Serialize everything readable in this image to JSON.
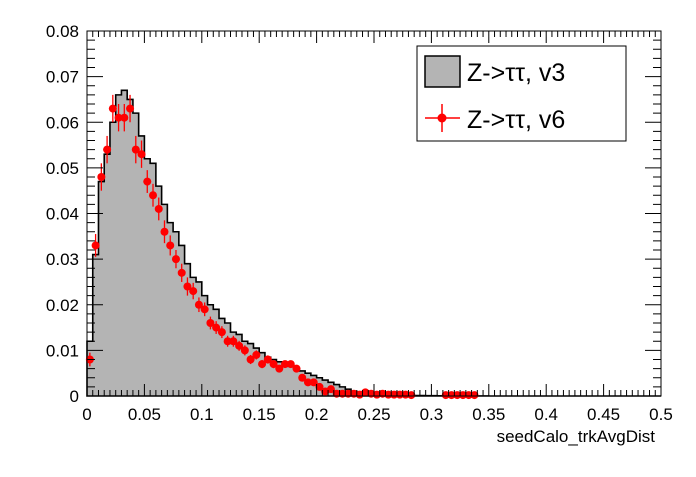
{
  "chart_data": {
    "type": "histogram",
    "title": "",
    "xlabel": "seedCalo_trkAvgDist",
    "ylabel": "",
    "xlim": [
      0,
      0.5
    ],
    "ylim": [
      0,
      0.08
    ],
    "grid": false,
    "legend_position": "top-right",
    "x_ticks": [
      "0",
      "0.05",
      "0.1",
      "0.15",
      "0.2",
      "0.25",
      "0.3",
      "0.35",
      "0.4",
      "0.45",
      "0.5"
    ],
    "y_ticks": [
      "0",
      "0.01",
      "0.02",
      "0.03",
      "0.04",
      "0.05",
      "0.06",
      "0.07",
      "0.08"
    ],
    "bin_width": 0.005,
    "series": [
      {
        "name": "Z->ττ, v3",
        "style": "filled-histogram",
        "fill": "#b4b4b4",
        "line": "#000000",
        "values": [
          0.012,
          0.031,
          0.047,
          0.053,
          0.06,
          0.066,
          0.067,
          0.065,
          0.062,
          0.057,
          0.052,
          0.051,
          0.046,
          0.042,
          0.038,
          0.036,
          0.033,
          0.029,
          0.026,
          0.025,
          0.022,
          0.02,
          0.019,
          0.017,
          0.016,
          0.014,
          0.0135,
          0.012,
          0.0115,
          0.0105,
          0.0095,
          0.0085,
          0.008,
          0.0075,
          0.007,
          0.0065,
          0.006,
          0.0055,
          0.005,
          0.0045,
          0.004,
          0.0035,
          0.003,
          0.0025,
          0.002,
          0.0015,
          0.001,
          0.0008,
          0.0006,
          0.0005,
          0.0004,
          0.0003,
          0.00025,
          0.0002,
          0.0002,
          0.00015,
          0.00012,
          0.0001,
          0.0001,
          8e-05,
          6e-05,
          5e-05,
          4e-05,
          3e-05,
          2e-05,
          2e-05,
          1e-05,
          1e-05,
          1e-05,
          1e-05,
          0,
          0,
          0,
          0,
          0,
          0,
          0,
          0,
          0,
          0,
          0,
          0,
          0,
          0,
          0,
          0,
          0,
          0,
          0,
          0,
          0,
          0,
          0,
          0,
          0,
          0,
          0,
          0,
          0,
          0
        ]
      },
      {
        "name": "Z->ττ, v6",
        "style": "points-with-errors",
        "color": "#ff0000",
        "x": [
          0.0025,
          0.0075,
          0.0125,
          0.0175,
          0.0225,
          0.0275,
          0.0325,
          0.0375,
          0.0425,
          0.0475,
          0.0525,
          0.0575,
          0.0625,
          0.0675,
          0.0725,
          0.0775,
          0.0825,
          0.0875,
          0.0925,
          0.0975,
          0.1025,
          0.1075,
          0.1125,
          0.1175,
          0.1225,
          0.1275,
          0.1325,
          0.1375,
          0.1425,
          0.1475,
          0.1525,
          0.1575,
          0.1625,
          0.1675,
          0.1725,
          0.1775,
          0.1825,
          0.1875,
          0.1925,
          0.1975,
          0.2025,
          0.2075,
          0.2125,
          0.2175,
          0.2225,
          0.2275,
          0.2325,
          0.2375,
          0.2425,
          0.2475,
          0.2525,
          0.2575,
          0.2625,
          0.2675,
          0.2725,
          0.2775,
          0.2825,
          0.3125,
          0.3175,
          0.3225,
          0.3275,
          0.3325,
          0.3375
        ],
        "values": [
          0.008,
          0.033,
          0.048,
          0.054,
          0.063,
          0.061,
          0.061,
          0.063,
          0.054,
          0.053,
          0.047,
          0.044,
          0.041,
          0.036,
          0.033,
          0.03,
          0.027,
          0.024,
          0.023,
          0.02,
          0.019,
          0.016,
          0.015,
          0.014,
          0.012,
          0.012,
          0.011,
          0.01,
          0.008,
          0.009,
          0.007,
          0.008,
          0.007,
          0.006,
          0.007,
          0.007,
          0.006,
          0.004,
          0.003,
          0.003,
          0.002,
          0.001,
          0.0015,
          0.0005,
          0.0005,
          0.0005,
          0.0005,
          0.0003,
          0.0008,
          0.0005,
          0.0003,
          0.0005,
          0.0003,
          0.0003,
          0.0003,
          0.0003,
          0.0002,
          0.0002,
          0.0002,
          0.0002,
          0.0002,
          0.0002,
          0.0002
        ],
        "errors": [
          0.0015,
          0.0025,
          0.003,
          0.003,
          0.003,
          0.003,
          0.003,
          0.003,
          0.003,
          0.003,
          0.0025,
          0.0025,
          0.0025,
          0.0025,
          0.0022,
          0.002,
          0.002,
          0.002,
          0.0018,
          0.0016,
          0.0015,
          0.0014,
          0.0014,
          0.0013,
          0.0012,
          0.0012,
          0.0011,
          0.0011,
          0.001,
          0.001,
          0.0009,
          0.0009,
          0.0009,
          0.0008,
          0.0008,
          0.0008,
          0.0008,
          0.0007,
          0.0006,
          0.0006,
          0.0005,
          0.0004,
          0.0004,
          0.0003,
          0.0003,
          0.0003,
          0.0003,
          0.0002,
          0.0003,
          0.0003,
          0.0002,
          0.0002,
          0.0002,
          0.0002,
          0.0002,
          0.0002,
          0.0002,
          0.0002,
          0.0002,
          0.0002,
          0.0002,
          0.0002,
          0.0002
        ]
      }
    ]
  }
}
